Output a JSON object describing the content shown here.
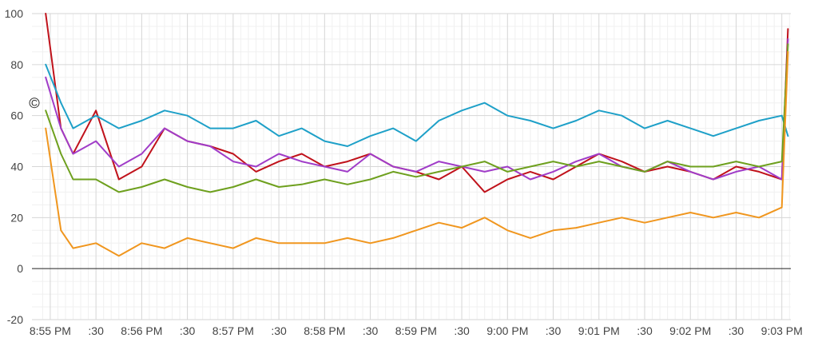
{
  "chart_data": {
    "type": "line",
    "title": "",
    "xlabel": "",
    "ylabel": "",
    "ylim": [
      -20,
      100
    ],
    "y_ticks": [
      "100",
      "80",
      "60",
      "40",
      "20",
      "0",
      "-20"
    ],
    "x_ticks": [
      "8:55 PM",
      ":30",
      "8:56 PM",
      ":30",
      "8:57 PM",
      ":30",
      "8:58 PM",
      ":30",
      "8:59 PM",
      ":30",
      "9:00 PM",
      ":30",
      "9:01 PM",
      ":30",
      "9:02 PM",
      ":30",
      "9:03 PM"
    ],
    "grid": true,
    "legend": "none",
    "cursor_label": "C",
    "x": [
      "8:54:57",
      "8:55:07",
      "8:55:15",
      "8:55:30",
      "8:55:45",
      "8:56:00",
      "8:56:15",
      "8:56:30",
      "8:56:45",
      "8:57:00",
      "8:57:15",
      "8:57:30",
      "8:57:45",
      "8:58:00",
      "8:58:15",
      "8:58:30",
      "8:58:45",
      "8:59:00",
      "8:59:15",
      "8:59:30",
      "8:59:45",
      "9:00:00",
      "9:00:15",
      "9:00:30",
      "9:00:45",
      "9:01:00",
      "9:01:15",
      "9:01:30",
      "9:01:45",
      "9:02:00",
      "9:02:15",
      "9:02:30",
      "9:02:45",
      "9:03:00",
      "9:03:04"
    ],
    "series": [
      {
        "color": "#c0121b",
        "values": [
          100,
          55,
          45,
          62,
          35,
          40,
          55,
          50,
          48,
          45,
          38,
          42,
          45,
          40,
          42,
          45,
          40,
          38,
          35,
          40,
          30,
          35,
          38,
          35,
          40,
          45,
          42,
          38,
          40,
          38,
          35,
          40,
          38,
          35,
          94
        ]
      },
      {
        "color": "#1ea0c8",
        "values": [
          80,
          65,
          55,
          60,
          55,
          58,
          62,
          60,
          55,
          55,
          58,
          52,
          55,
          50,
          48,
          52,
          55,
          50,
          58,
          62,
          65,
          60,
          58,
          55,
          58,
          62,
          60,
          55,
          58,
          55,
          52,
          55,
          58,
          60,
          52
        ]
      },
      {
        "color": "#a03cc8",
        "values": [
          75,
          55,
          45,
          50,
          40,
          45,
          55,
          50,
          48,
          42,
          40,
          45,
          42,
          40,
          38,
          45,
          40,
          38,
          42,
          40,
          38,
          40,
          35,
          38,
          42,
          45,
          40,
          38,
          42,
          38,
          35,
          38,
          40,
          35,
          90
        ]
      },
      {
        "color": "#6ea01e",
        "values": [
          62,
          45,
          35,
          35,
          30,
          32,
          35,
          32,
          30,
          32,
          35,
          32,
          33,
          35,
          33,
          35,
          38,
          36,
          38,
          40,
          42,
          38,
          40,
          42,
          40,
          42,
          40,
          38,
          42,
          40,
          40,
          42,
          40,
          42,
          88
        ]
      },
      {
        "color": "#f0961e",
        "values": [
          55,
          15,
          8,
          10,
          5,
          10,
          8,
          12,
          10,
          8,
          12,
          10,
          10,
          10,
          12,
          10,
          12,
          15,
          18,
          16,
          20,
          15,
          12,
          15,
          16,
          18,
          20,
          18,
          20,
          22,
          20,
          22,
          20,
          24,
          85
        ]
      }
    ]
  }
}
